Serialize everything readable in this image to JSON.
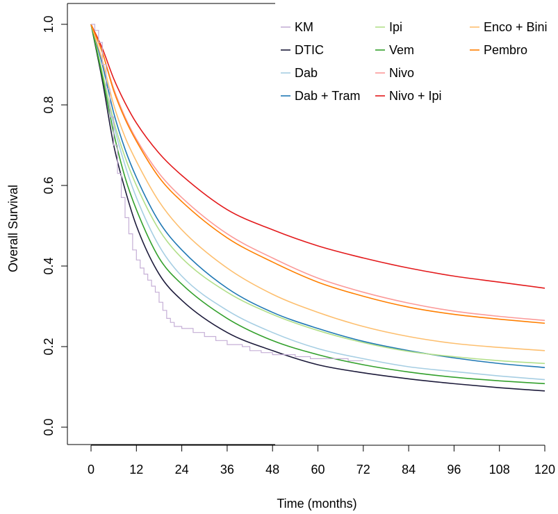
{
  "chart_data": {
    "type": "line",
    "title": "",
    "xlabel": "Time (months)",
    "ylabel": "Overall Survival",
    "xlim": [
      0,
      120
    ],
    "ylim": [
      0,
      1
    ],
    "xticks": [
      0,
      12,
      24,
      36,
      48,
      60,
      72,
      84,
      96,
      108,
      120
    ],
    "yticks": [
      0.0,
      0.2,
      0.4,
      0.6,
      0.8,
      1.0
    ],
    "ytick_labels": [
      "0.0",
      "0.2",
      "0.4",
      "0.6",
      "0.8",
      "1.0"
    ],
    "grid": false,
    "legend_position": "top-right",
    "x": [
      0,
      3,
      6,
      9,
      12,
      18,
      24,
      36,
      48,
      60,
      72,
      84,
      96,
      108,
      120
    ],
    "series": [
      {
        "name": "KM",
        "color": "#c5afd6",
        "step": true,
        "x": [
          0,
          1,
          2,
          3,
          4,
          5,
          6,
          7,
          8,
          9,
          10,
          11,
          12,
          13,
          14,
          15,
          16,
          17,
          18,
          19,
          20,
          21,
          22,
          24,
          27,
          30,
          33,
          36,
          40,
          42,
          45,
          48,
          54,
          58,
          62,
          68,
          72
        ],
        "values": [
          1.0,
          0.985,
          0.955,
          0.9,
          0.84,
          0.77,
          0.7,
          0.63,
          0.57,
          0.52,
          0.48,
          0.44,
          0.415,
          0.395,
          0.38,
          0.365,
          0.35,
          0.335,
          0.31,
          0.29,
          0.27,
          0.26,
          0.25,
          0.245,
          0.235,
          0.225,
          0.215,
          0.205,
          0.2,
          0.19,
          0.185,
          0.18,
          0.175,
          0.17,
          0.17,
          0.165,
          0.165
        ]
      },
      {
        "name": "DTIC",
        "color": "#1c1a3a",
        "values": [
          1.0,
          0.86,
          0.7,
          0.59,
          0.5,
          0.38,
          0.315,
          0.235,
          0.19,
          0.155,
          0.135,
          0.12,
          0.108,
          0.098,
          0.09
        ]
      },
      {
        "name": "Dab",
        "color": "#a6cee3",
        "values": [
          1.0,
          0.88,
          0.75,
          0.65,
          0.57,
          0.45,
          0.375,
          0.29,
          0.235,
          0.195,
          0.17,
          0.15,
          0.138,
          0.127,
          0.118
        ]
      },
      {
        "name": "Dab + Tram",
        "color": "#1f78b4",
        "values": [
          1.0,
          0.9,
          0.78,
          0.69,
          0.62,
          0.51,
          0.44,
          0.345,
          0.285,
          0.245,
          0.213,
          0.19,
          0.172,
          0.158,
          0.148
        ]
      },
      {
        "name": "Ipi",
        "color": "#b2df8a",
        "values": [
          1.0,
          0.88,
          0.76,
          0.67,
          0.6,
          0.49,
          0.42,
          0.335,
          0.28,
          0.24,
          0.21,
          0.188,
          0.175,
          0.165,
          0.158
        ]
      },
      {
        "name": "Vem",
        "color": "#33a02c",
        "values": [
          1.0,
          0.87,
          0.73,
          0.62,
          0.54,
          0.42,
          0.355,
          0.27,
          0.215,
          0.18,
          0.155,
          0.137,
          0.124,
          0.115,
          0.108
        ]
      },
      {
        "name": "Nivo",
        "color": "#fb9a99",
        "values": [
          1.0,
          0.93,
          0.84,
          0.77,
          0.715,
          0.63,
          0.57,
          0.48,
          0.42,
          0.37,
          0.335,
          0.308,
          0.288,
          0.275,
          0.265
        ]
      },
      {
        "name": "Nivo + Ipi",
        "color": "#e31a1c",
        "values": [
          1.0,
          0.94,
          0.865,
          0.805,
          0.755,
          0.68,
          0.625,
          0.54,
          0.49,
          0.45,
          0.42,
          0.395,
          0.375,
          0.36,
          0.345
        ]
      },
      {
        "name": "Enco + Bini",
        "color": "#fdbf6f",
        "values": [
          1.0,
          0.91,
          0.8,
          0.72,
          0.66,
          0.56,
          0.49,
          0.395,
          0.33,
          0.285,
          0.25,
          0.225,
          0.208,
          0.198,
          0.19
        ]
      },
      {
        "name": "Pembro",
        "color": "#ff7f00",
        "values": [
          1.0,
          0.93,
          0.835,
          0.765,
          0.71,
          0.62,
          0.56,
          0.47,
          0.41,
          0.36,
          0.325,
          0.298,
          0.28,
          0.268,
          0.258
        ]
      }
    ]
  }
}
